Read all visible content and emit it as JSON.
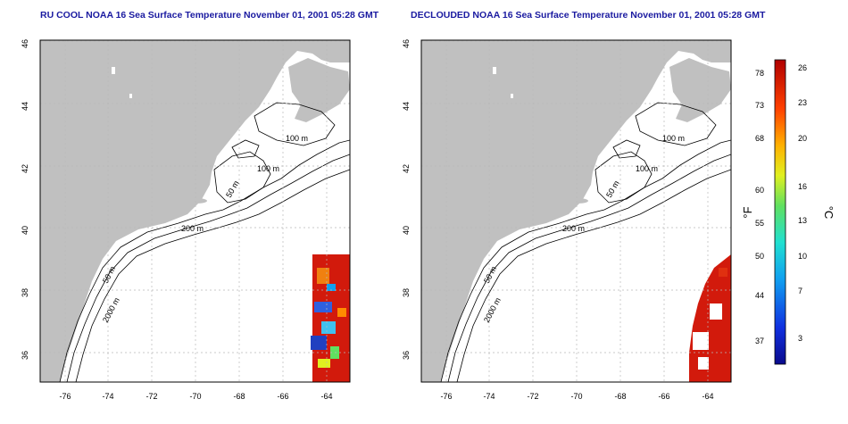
{
  "panels": [
    {
      "title": "RU COOL NOAA 16 Sea Surface Temperature November 01, 2001 05:28 GMT",
      "contour_labels": [
        "100 m",
        "100 m",
        "50 m",
        "200 m",
        "50 m",
        "2000 m"
      ]
    },
    {
      "title": "DECLOUDED NOAA 16 Sea Surface Temperature November 01, 2001 05:28 GMT",
      "contour_labels": [
        "100 m",
        "100 m",
        "50 m",
        "200 m",
        "50 m",
        "2000 m"
      ]
    }
  ],
  "axes": {
    "x_ticks": [
      "-76",
      "-74",
      "-72",
      "-70",
      "-68",
      "-66",
      "-64"
    ],
    "y_ticks": [
      "46",
      "44",
      "42",
      "40",
      "38",
      "36"
    ]
  },
  "colorbar": {
    "f_ticks": [
      "78",
      "73",
      "68",
      "60",
      "55",
      "50",
      "44",
      "37"
    ],
    "c_ticks": [
      "26",
      "23",
      "20",
      "16",
      "13",
      "10",
      "7",
      "3"
    ],
    "f_label": "°F",
    "c_label": "°C"
  },
  "colors": {
    "land": "#c0c0c0",
    "ocean": "#ffffff",
    "title": "#1a1aa0",
    "grid": "#b8b8b8"
  }
}
